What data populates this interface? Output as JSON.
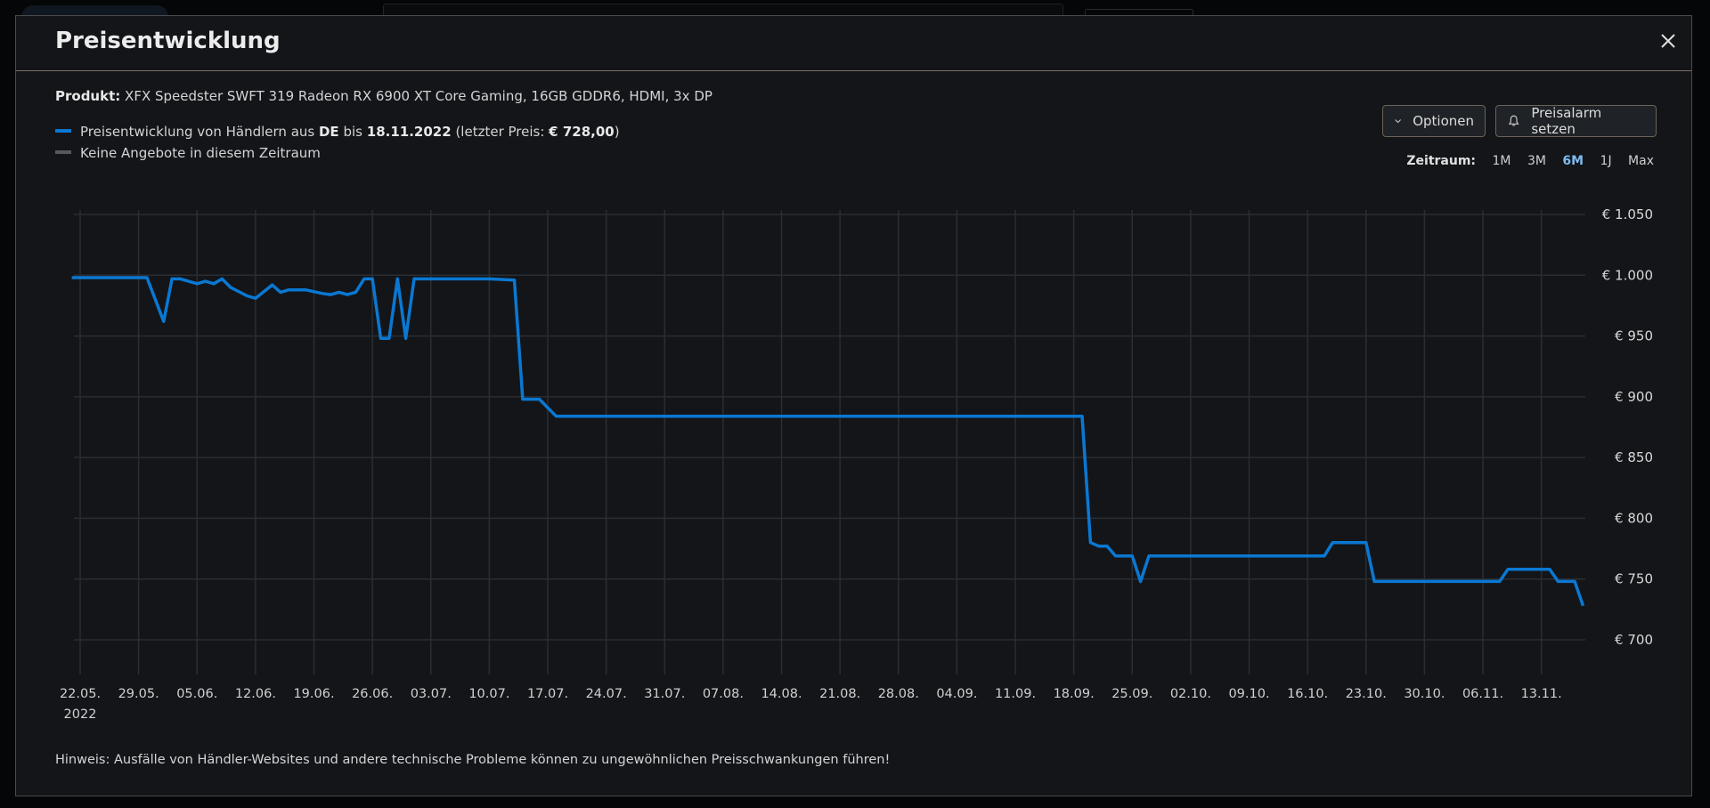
{
  "modal": {
    "title": "Preisentwicklung",
    "product_label": "Produkt:",
    "product_name": "XFX Speedster SWFT 319 Radeon RX 6900 XT Core Gaming, 16GB GDDR6, HDMI, 3x DP",
    "legend": {
      "series_prefix": "Preisentwicklung von Händlern aus",
      "country": "DE",
      "until_word": "bis",
      "date": "18.11.2022",
      "last_price_prefix": "(letzter Preis:",
      "last_price": "€ 728,00",
      "last_price_suffix": ")",
      "no_offers": "Keine Angebote in diesem Zeitraum",
      "series_color": "#0a78d2",
      "no_offers_color": "#55595e"
    },
    "buttons": {
      "options": "Optionen",
      "price_alarm": "Preisalarm setzen"
    },
    "period": {
      "label": "Zeitraum:",
      "options": [
        "1M",
        "3M",
        "6M",
        "1J",
        "Max"
      ],
      "selected": "6M"
    },
    "hint": "Hinweis: Ausfälle von Händler-Websites und andere technische Probleme können zu ungewöhnlichen Preisschwankungen führen!"
  },
  "chart_data": {
    "type": "line",
    "title": "",
    "xlabel": "",
    "ylabel": "",
    "ylim": [
      700,
      1050
    ],
    "y_ticks": [
      700,
      750,
      800,
      850,
      900,
      950,
      1000,
      1050
    ],
    "y_tick_labels": [
      "€ 700",
      "€ 750",
      "€ 800",
      "€ 850",
      "€ 900",
      "€ 950",
      "€ 1.000",
      "€ 1.050"
    ],
    "x_ticks": [
      "22.05.2022",
      "29.05.2022",
      "05.06.2022",
      "12.06.2022",
      "19.06.2022",
      "26.06.2022",
      "03.07.2022",
      "10.07.2022",
      "17.07.2022",
      "24.07.2022",
      "31.07.2022",
      "07.08.2022",
      "14.08.2022",
      "21.08.2022",
      "28.08.2022",
      "04.09.2022",
      "11.09.2022",
      "18.09.2022",
      "25.09.2022",
      "02.10.2022",
      "09.10.2022",
      "16.10.2022",
      "23.10.2022",
      "30.10.2022",
      "06.11.2022",
      "13.11.2022"
    ],
    "x_tick_labels": [
      "22.05.",
      "29.05.",
      "05.06.",
      "12.06.",
      "19.06.",
      "26.06.",
      "03.07.",
      "10.07.",
      "17.07.",
      "24.07.",
      "31.07.",
      "07.08.",
      "14.08.",
      "21.08.",
      "28.08.",
      "04.09.",
      "11.09.",
      "18.09.",
      "25.09.",
      "02.10.",
      "09.10.",
      "16.10.",
      "23.10.",
      "30.10.",
      "06.11.",
      "13.11."
    ],
    "x_year_label": "2022",
    "grid": true,
    "color": "#0a78d2",
    "series": [
      {
        "points": [
          [
            "21.05.2022",
            998
          ],
          [
            "30.05.2022",
            998
          ],
          [
            "01.06.2022",
            962
          ],
          [
            "02.06.2022",
            997
          ],
          [
            "03.06.2022",
            997
          ],
          [
            "05.06.2022",
            993
          ],
          [
            "06.06.2022",
            995
          ],
          [
            "07.06.2022",
            993
          ],
          [
            "08.06.2022",
            997
          ],
          [
            "09.06.2022",
            990
          ],
          [
            "11.06.2022",
            983
          ],
          [
            "12.06.2022",
            981
          ],
          [
            "14.06.2022",
            992
          ],
          [
            "15.06.2022",
            986
          ],
          [
            "16.06.2022",
            988
          ],
          [
            "18.06.2022",
            988
          ],
          [
            "20.06.2022",
            985
          ],
          [
            "21.06.2022",
            984
          ],
          [
            "22.06.2022",
            986
          ],
          [
            "23.06.2022",
            984
          ],
          [
            "24.06.2022",
            986
          ],
          [
            "25.06.2022",
            997
          ],
          [
            "26.06.2022",
            997
          ],
          [
            "27.06.2022",
            948
          ],
          [
            "28.06.2022",
            948
          ],
          [
            "29.06.2022",
            997
          ],
          [
            "30.06.2022",
            948
          ],
          [
            "01.07.2022",
            997
          ],
          [
            "10.07.2022",
            997
          ],
          [
            "13.07.2022",
            996
          ],
          [
            "14.07.2022",
            898
          ],
          [
            "16.07.2022",
            898
          ],
          [
            "18.07.2022",
            884
          ],
          [
            "19.09.2022",
            884
          ],
          [
            "20.09.2022",
            780
          ],
          [
            "21.09.2022",
            777
          ],
          [
            "22.09.2022",
            777
          ],
          [
            "23.09.2022",
            769
          ],
          [
            "25.09.2022",
            769
          ],
          [
            "26.09.2022",
            748
          ],
          [
            "27.09.2022",
            769
          ],
          [
            "18.10.2022",
            769
          ],
          [
            "19.10.2022",
            780
          ],
          [
            "23.10.2022",
            780
          ],
          [
            "24.10.2022",
            748
          ],
          [
            "08.11.2022",
            748
          ],
          [
            "09.11.2022",
            758
          ],
          [
            "14.11.2022",
            758
          ],
          [
            "15.11.2022",
            748
          ],
          [
            "17.11.2022",
            748
          ],
          [
            "18.11.2022",
            728
          ]
        ]
      }
    ]
  }
}
